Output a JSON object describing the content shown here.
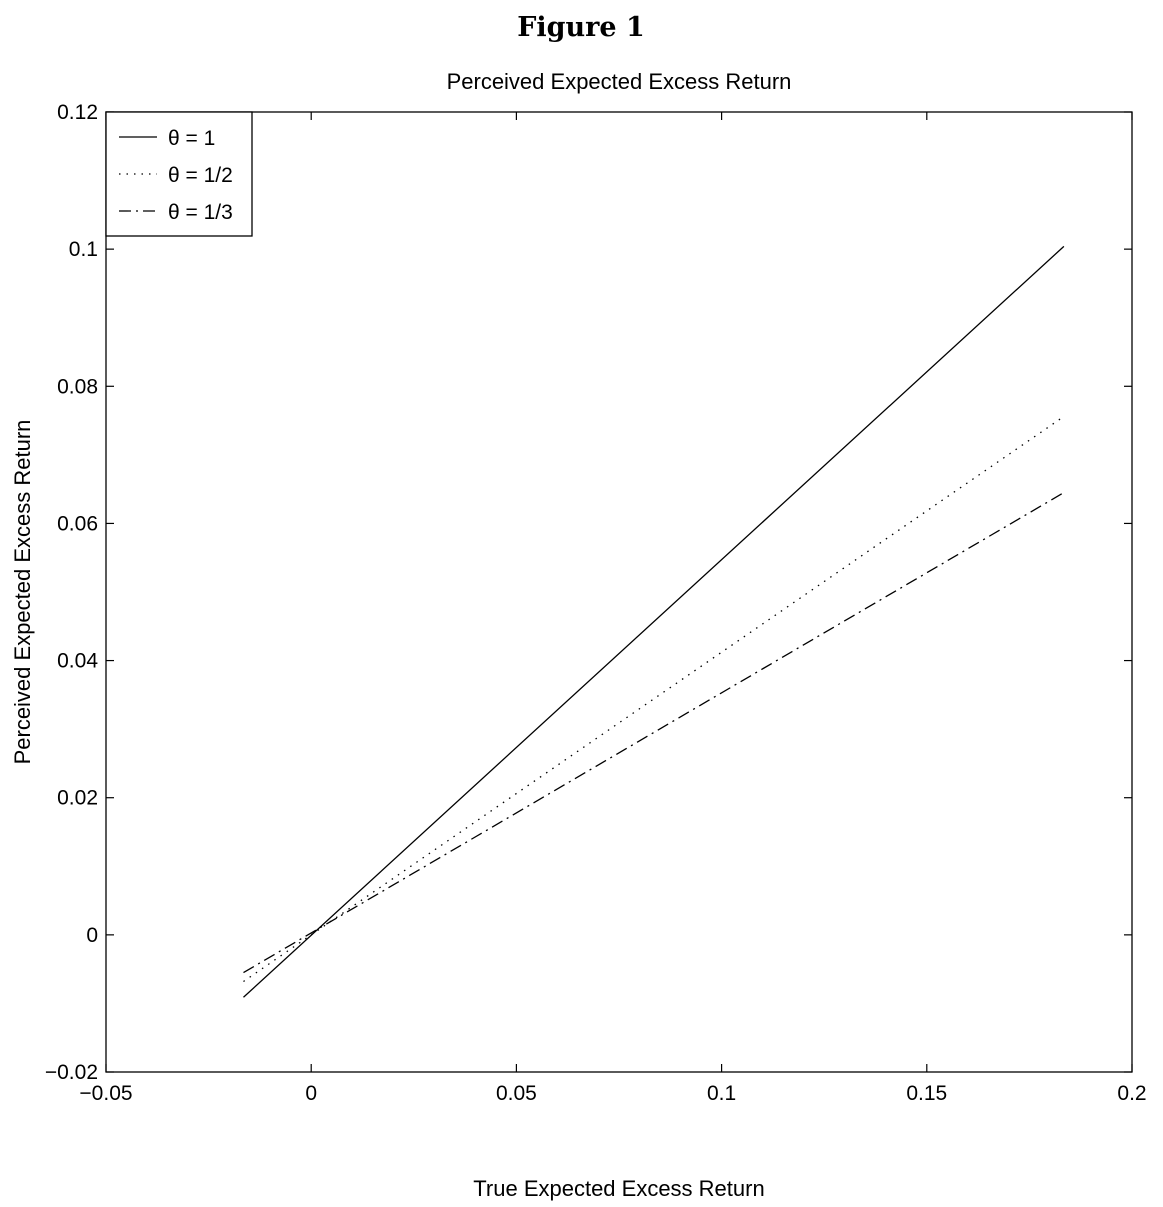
{
  "figure": {
    "heading": "Figure 1"
  },
  "chart_data": {
    "type": "line",
    "title": "Perceived Expected Excess Return",
    "xlabel": "True Expected Excess Return",
    "ylabel": "Perceived Expected Excess Return",
    "xlim": [
      -0.05,
      0.2
    ],
    "ylim": [
      -0.02,
      0.12
    ],
    "xticks": [
      -0.05,
      0,
      0.05,
      0.1,
      0.15,
      0.2
    ],
    "xtick_labels": [
      "−0.05",
      "0",
      "0.05",
      "0.1",
      "0.15",
      "0.2"
    ],
    "yticks": [
      -0.02,
      0,
      0.02,
      0.04,
      0.06,
      0.08,
      0.1,
      0.12
    ],
    "ytick_labels": [
      "−0.02",
      "0",
      "0.02",
      "0.04",
      "0.06",
      "0.08",
      "0.1",
      "0.12"
    ],
    "grid": false,
    "legend_position": "top-left",
    "series": [
      {
        "name": "θ = 1",
        "style": "solid",
        "x": [
          -0.0165,
          0.1834
        ],
        "y": [
          -0.0091,
          0.1004
        ]
      },
      {
        "name": "θ = 1/2",
        "style": "dotted",
        "x": [
          -0.0165,
          0.1834
        ],
        "y": [
          -0.0068,
          0.0756
        ]
      },
      {
        "name": "θ = 1/3",
        "style": "dash-dot",
        "x": [
          -0.0165,
          0.1834
        ],
        "y": [
          -0.0055,
          0.0645
        ]
      }
    ]
  }
}
